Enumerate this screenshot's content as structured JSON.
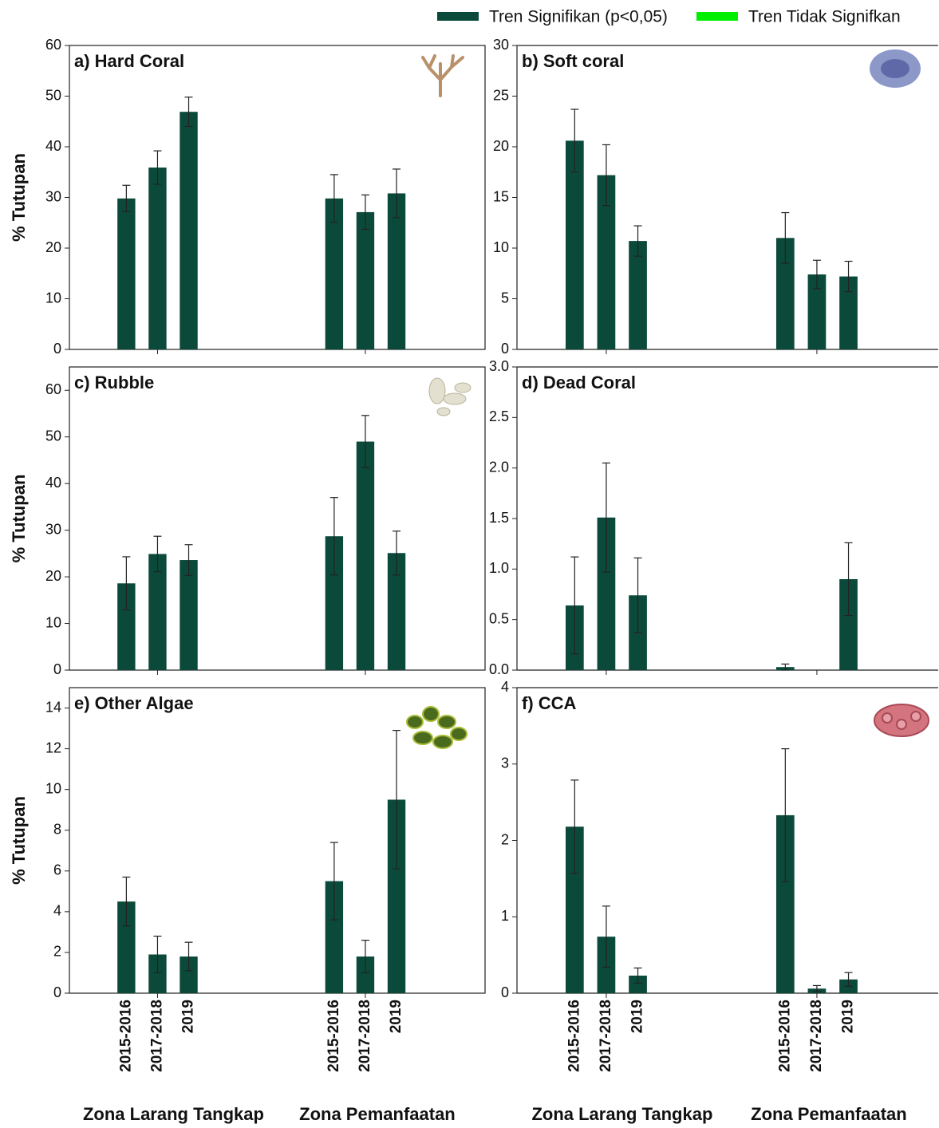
{
  "legend": [
    {
      "name": "Tren Signifikan (p<0,05)",
      "color": "#0b4a3a"
    },
    {
      "name": "Tren Tidak Signifkan",
      "color": "#00ee00"
    }
  ],
  "chart_data": [
    {
      "type": "bar",
      "title": "a) Hard Coral",
      "ylabel": "% Tutupan",
      "color": "#0b4a3a",
      "values": [
        29.8,
        35.9,
        46.9,
        29.8,
        27.1,
        30.8
      ],
      "errors": [
        2.6,
        3.3,
        2.9,
        4.7,
        3.4,
        4.8
      ],
      "ylim": [
        0,
        60
      ],
      "yticks": [
        0,
        10,
        20,
        30,
        40,
        50,
        60
      ]
    },
    {
      "type": "bar",
      "title": "b) Soft coral",
      "color": "#0b4a3a",
      "values": [
        20.6,
        17.2,
        10.7,
        11.0,
        7.4,
        7.2
      ],
      "errors": [
        3.1,
        3.0,
        1.5,
        2.5,
        1.4,
        1.5
      ],
      "ylim": [
        0,
        30
      ],
      "yticks": [
        0,
        5,
        10,
        15,
        20,
        25,
        30
      ]
    },
    {
      "type": "bar",
      "title": "c) Rubble",
      "ylabel": "% Tutupan",
      "color": "#0b4a3a",
      "values": [
        18.6,
        24.9,
        23.6,
        28.7,
        49.0,
        25.1
      ],
      "errors": [
        5.7,
        3.8,
        3.3,
        8.3,
        5.6,
        4.7
      ],
      "ylim": [
        0,
        65
      ],
      "yticks": [
        0,
        10,
        20,
        30,
        40,
        50,
        60
      ]
    },
    {
      "type": "bar",
      "title": "d) Dead Coral",
      "color": "#0b4a3a",
      "values": [
        0.64,
        1.51,
        0.74,
        0.03,
        0,
        0.9
      ],
      "errors": [
        0.48,
        0.54,
        0.37,
        0.03,
        0,
        0.36
      ],
      "ylim": [
        0,
        3
      ],
      "yticks": [
        {
          "value": 0,
          "label": "0.0"
        },
        0.5,
        {
          "value": 1,
          "label": "1.0"
        },
        1.5,
        {
          "value": 2,
          "label": "2.0"
        },
        2.5,
        {
          "value": 3,
          "label": "3.0"
        }
      ]
    },
    {
      "type": "bar",
      "title": "e) Other Algae",
      "ylabel": "% Tutupan",
      "color": "#0b4a3a",
      "categories": [
        "2015-2016",
        "2017-2018",
        "2019",
        "2015-2016",
        "2017-2018",
        "2019"
      ],
      "groups": [
        "Zona Larang Tangkap",
        "Zona Pemanfaatan"
      ],
      "values": [
        4.5,
        1.9,
        1.8,
        5.5,
        1.8,
        9.5
      ],
      "errors": [
        1.2,
        0.9,
        0.7,
        1.9,
        0.8,
        3.4
      ],
      "ylim": [
        0,
        15
      ],
      "yticks": [
        0,
        2,
        4,
        6,
        8,
        10,
        12,
        14
      ]
    },
    {
      "type": "bar",
      "title": "f) CCA",
      "color": "#0b4a3a",
      "categories": [
        "2015-2016",
        "2017-2018",
        "2019",
        "2015-2016",
        "2017-2018",
        "2019"
      ],
      "groups": [
        "Zona Larang Tangkap",
        "Zona Pemanfaatan"
      ],
      "values": [
        2.18,
        0.74,
        0.23,
        2.33,
        0.06,
        0.18
      ],
      "errors": [
        0.61,
        0.4,
        0.1,
        0.87,
        0.04,
        0.09
      ],
      "ylim": [
        0,
        4
      ],
      "yticks": [
        0,
        1,
        2,
        3,
        4
      ]
    }
  ]
}
